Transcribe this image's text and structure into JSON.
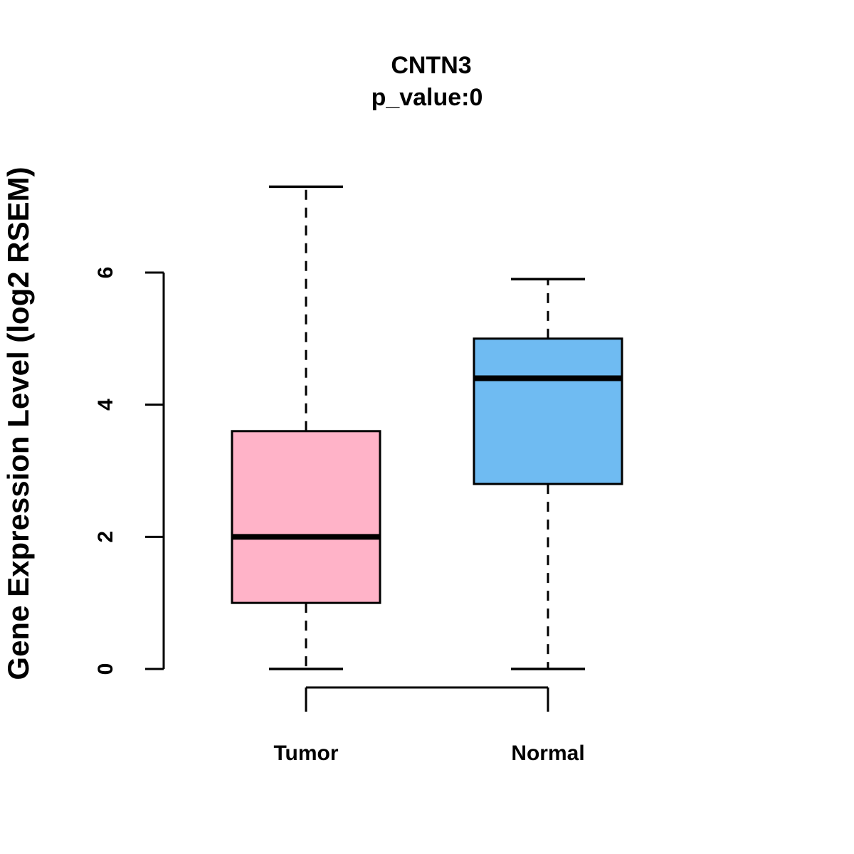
{
  "chart_data": {
    "type": "boxplot",
    "title": "CNTN3",
    "subtitle": "p_value:0",
    "ylabel": "Gene Expression Level (log2 RSEM)",
    "xlabel": "",
    "ylim": [
      0,
      7.4
    ],
    "yticks": [
      0,
      2,
      4,
      6
    ],
    "grid": false,
    "legend": "none",
    "comparison_bracket": true,
    "categories": [
      "Tumor",
      "Normal"
    ],
    "series": [
      {
        "name": "Tumor",
        "color": "#FFB3C8",
        "whisker_low": 0,
        "q1": 1.0,
        "median": 2.0,
        "q3": 3.6,
        "whisker_high": 7.3
      },
      {
        "name": "Normal",
        "color": "#6FBBF2",
        "whisker_low": 0,
        "q1": 2.8,
        "median": 4.4,
        "q3": 5.0,
        "whisker_high": 5.9
      }
    ]
  }
}
